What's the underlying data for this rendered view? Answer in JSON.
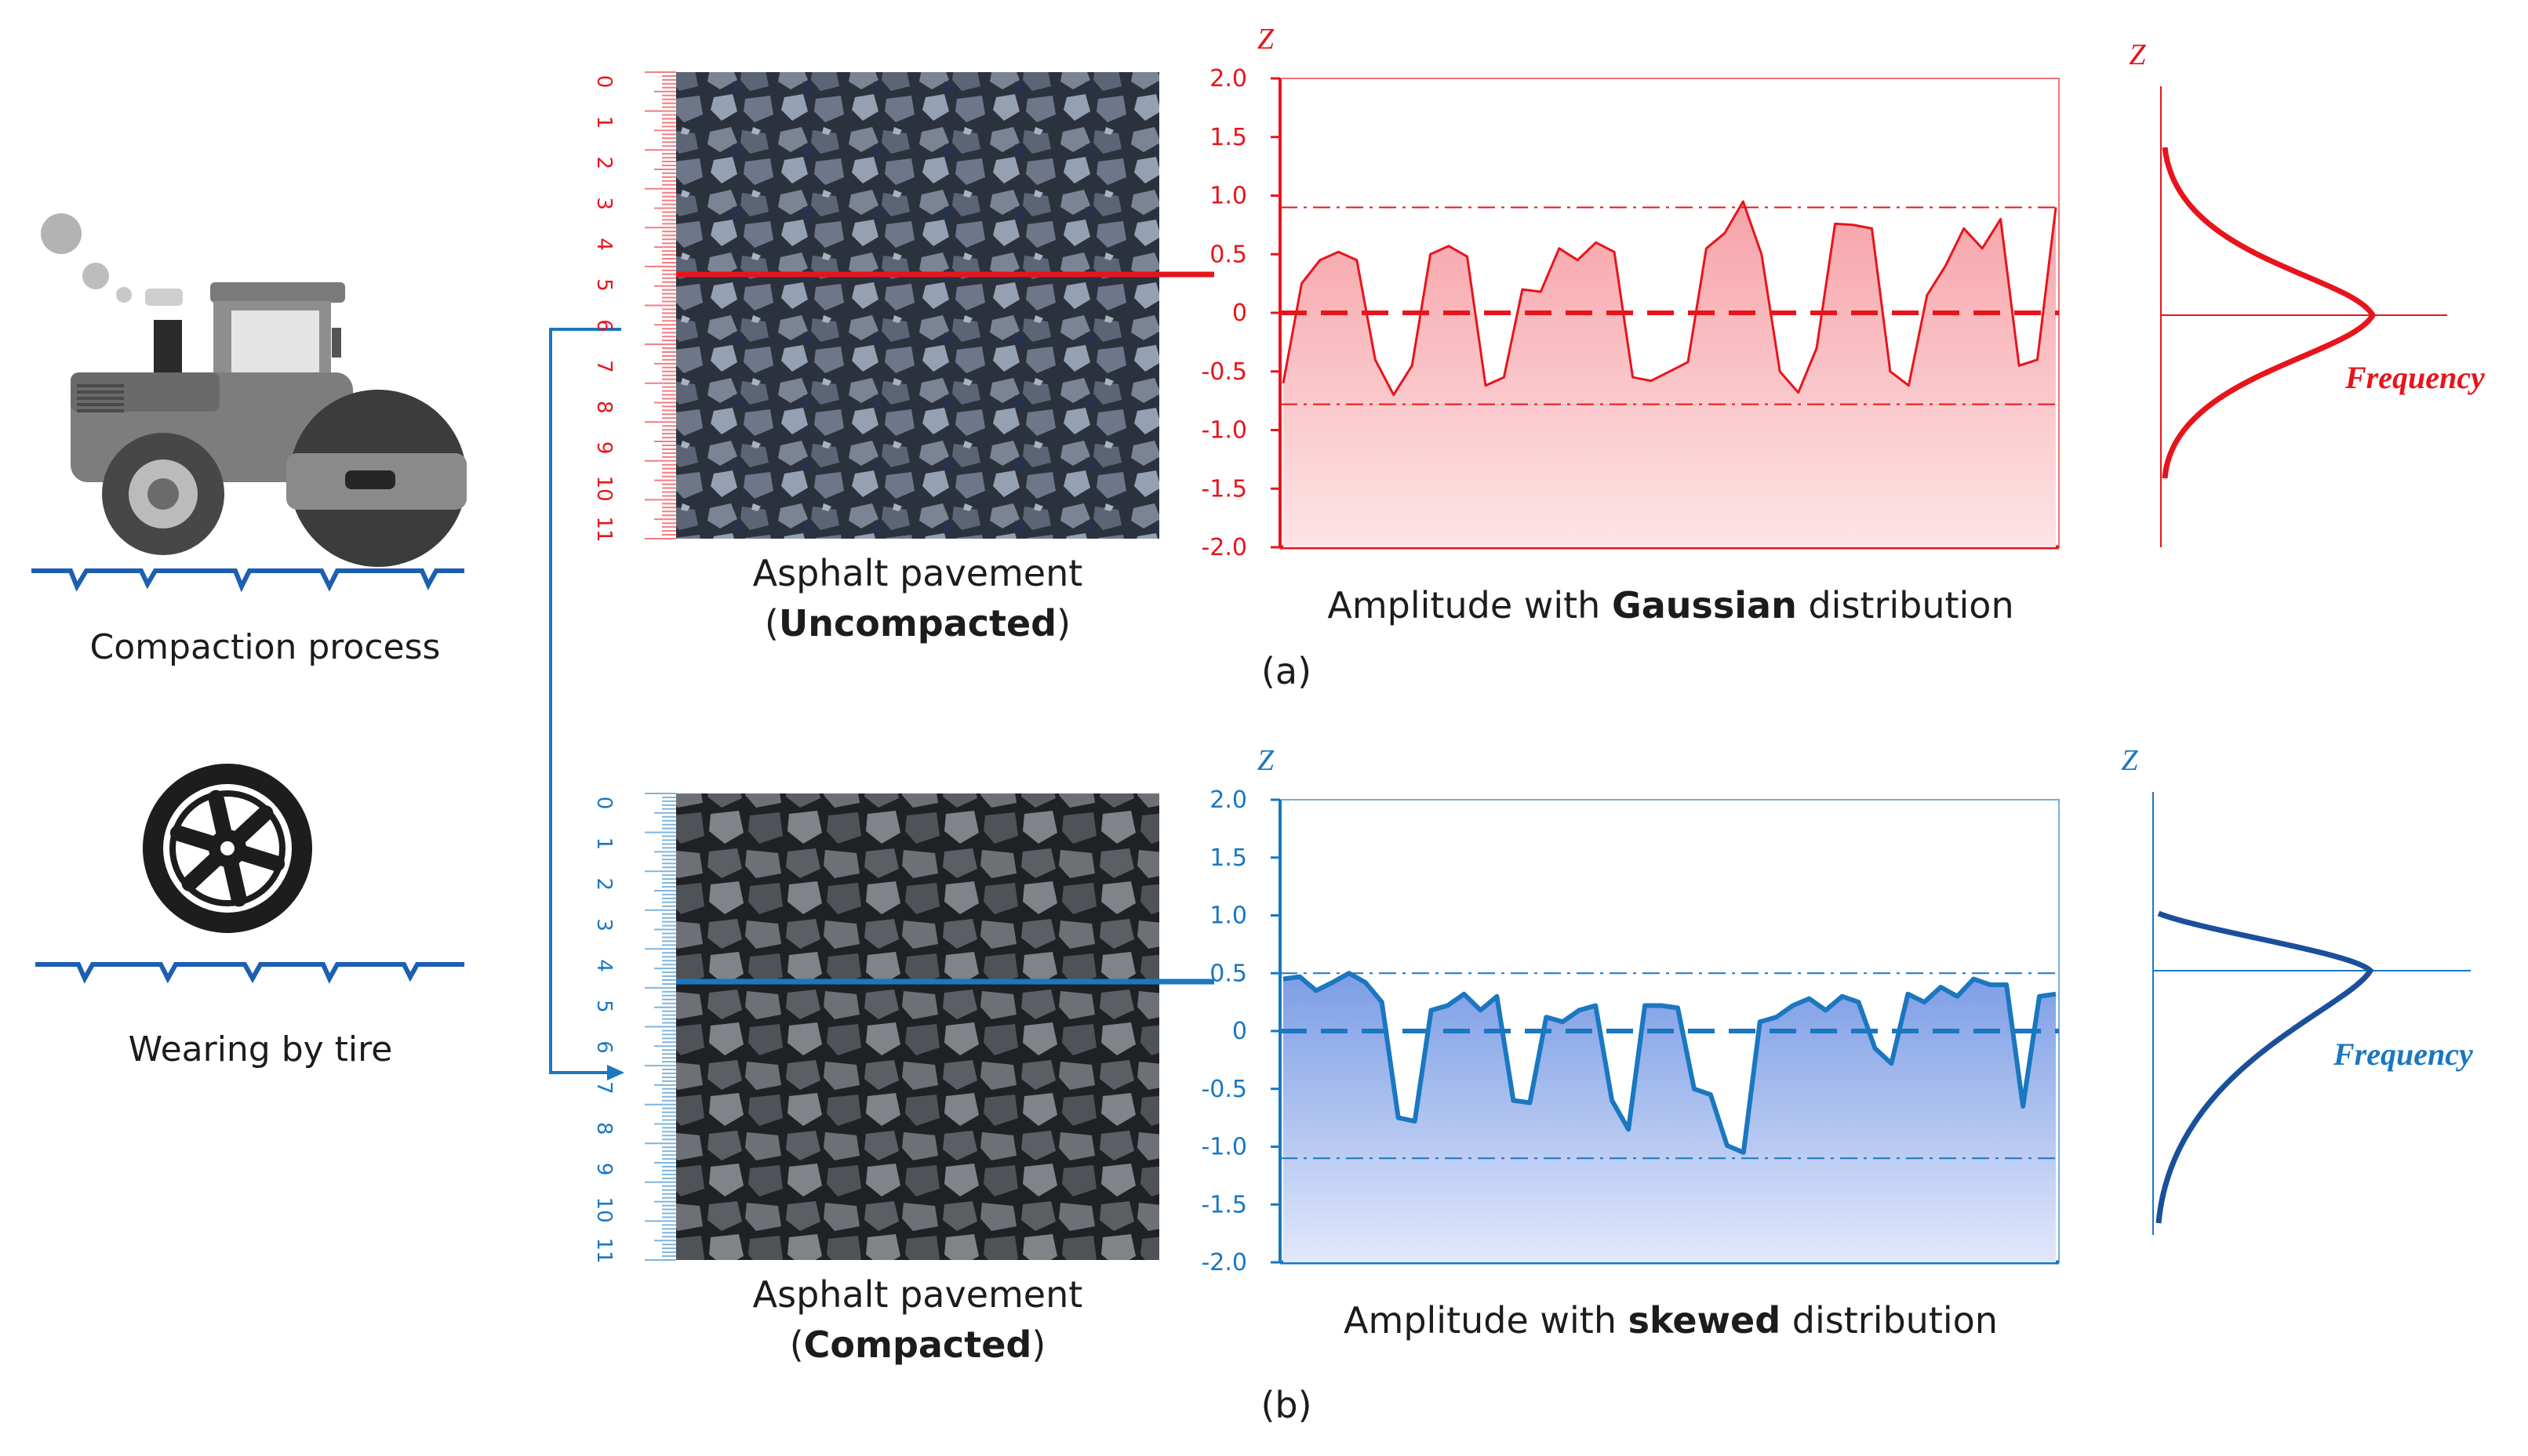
{
  "left": {
    "compaction_label": "Compaction process",
    "wearing_label": "Wearing by tire"
  },
  "panels": [
    {
      "id": "a",
      "color": "#e8141b",
      "fill": "#f6a8ac",
      "photo_tone": "#3a4150",
      "photo_title": "Asphalt pavement",
      "photo_state": "Uncompacted",
      "caption_prefix": "Amplitude with ",
      "caption_bold": "Gaussian",
      "caption_suffix": " distribution",
      "panel_label": "(a)",
      "ruler_ticks": [
        "0",
        "1",
        "2",
        "3",
        "4",
        "5",
        "6",
        "7",
        "8",
        "9",
        "10",
        "11"
      ],
      "z_label": "Z",
      "dist_z_label": "Z",
      "freq_label": "Frequency"
    },
    {
      "id": "b",
      "color": "#1a77c0",
      "fill": "#8aa9e8",
      "photo_tone": "#34363a",
      "photo_title": "Asphalt pavement",
      "photo_state": "Compacted",
      "caption_prefix": "Amplitude with ",
      "caption_bold": "skewed",
      "caption_suffix": " distribution",
      "panel_label": "(b)",
      "ruler_ticks": [
        "0",
        "1",
        "2",
        "3",
        "4",
        "5",
        "6",
        "7",
        "8",
        "9",
        "10",
        "11"
      ],
      "z_label": "Z",
      "dist_z_label": "Z",
      "freq_label": "Frequency"
    }
  ],
  "chart_data": [
    {
      "type": "area",
      "panel": "a",
      "ylabel": "Z",
      "ylim": [
        -2.0,
        2.0
      ],
      "yticks": [
        "2.0",
        "1.5",
        "1.0",
        "0.5",
        "0",
        "-0.5",
        "-1.0",
        "-1.5",
        "-2.0"
      ],
      "mean_line": 0,
      "bounds": [
        0.9,
        -0.78
      ],
      "profile": [
        -0.6,
        0.25,
        0.45,
        0.52,
        0.45,
        -0.4,
        -0.7,
        -0.45,
        0.5,
        0.57,
        0.48,
        -0.62,
        -0.55,
        0.2,
        0.18,
        0.55,
        0.45,
        0.6,
        0.52,
        -0.55,
        -0.58,
        -0.5,
        -0.42,
        0.55,
        0.68,
        0.95,
        0.5,
        -0.5,
        -0.68,
        -0.3,
        0.76,
        0.75,
        0.72,
        -0.5,
        -0.62,
        0.15,
        0.4,
        0.72,
        0.55,
        0.8,
        -0.45,
        -0.4,
        0.9
      ]
    },
    {
      "type": "area",
      "panel": "b",
      "ylabel": "Z",
      "ylim": [
        -2.0,
        2.0
      ],
      "yticks": [
        "2.0",
        "1.5",
        "1.0",
        "0.5",
        "0",
        "-0.5",
        "-1.0",
        "-1.5",
        "-2.0"
      ],
      "mean_line": 0,
      "bounds": [
        0.5,
        -1.1
      ],
      "profile": [
        0.45,
        0.47,
        0.35,
        0.42,
        0.5,
        0.42,
        0.25,
        -0.75,
        -0.78,
        0.18,
        0.22,
        0.32,
        0.18,
        0.3,
        -0.6,
        -0.62,
        0.12,
        0.08,
        0.18,
        0.22,
        -0.6,
        -0.85,
        0.22,
        0.22,
        0.2,
        -0.5,
        -0.55,
        -0.99,
        -1.05,
        0.08,
        0.12,
        0.22,
        0.28,
        0.18,
        0.3,
        0.25,
        -0.15,
        -0.28,
        0.32,
        0.25,
        0.38,
        0.3,
        0.45,
        0.4,
        0.4,
        -0.65,
        0.3,
        0.32
      ]
    }
  ]
}
